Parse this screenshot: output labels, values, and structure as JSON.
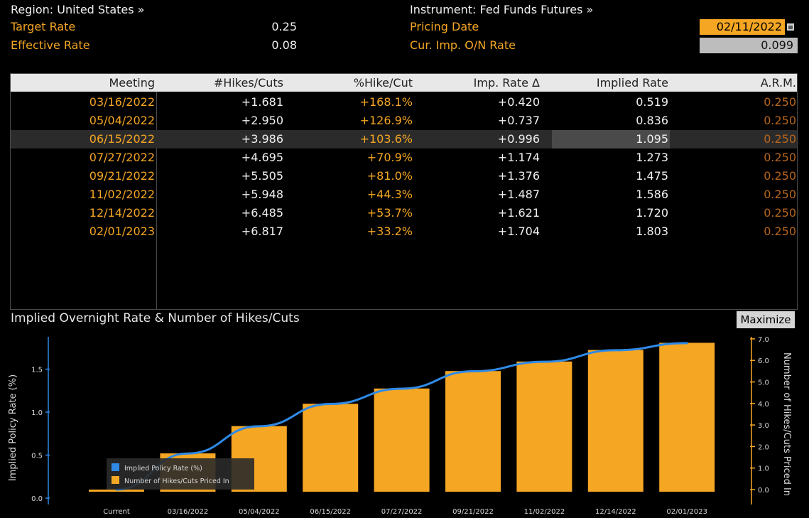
{
  "header": {
    "region_label": "Region: United States »",
    "instrument_label": "Instrument: Fed Funds Futures »",
    "target_rate_label": "Target Rate",
    "target_rate_value": "0.25",
    "effective_rate_label": "Effective Rate",
    "effective_rate_value": "0.08",
    "pricing_date_label": "Pricing Date",
    "pricing_date_value": "02/11/2022",
    "cur_imp_label": "Cur. Imp. O/N Rate",
    "cur_imp_value": "0.099"
  },
  "table": {
    "columns": [
      "Meeting",
      "#Hikes/Cuts",
      "%Hike/Cut",
      "Imp. Rate Δ",
      "Implied Rate",
      "A.R.M."
    ],
    "rows": [
      [
        "03/16/2022",
        "+1.681",
        "+168.1%",
        "+0.420",
        "0.519",
        "0.250"
      ],
      [
        "05/04/2022",
        "+2.950",
        "+126.9%",
        "+0.737",
        "0.836",
        "0.250"
      ],
      [
        "06/15/2022",
        "+3.986",
        "+103.6%",
        "+0.996",
        "1.095",
        "0.250"
      ],
      [
        "07/27/2022",
        "+4.695",
        "+70.9%",
        "+1.174",
        "1.273",
        "0.250"
      ],
      [
        "09/21/2022",
        "+5.505",
        "+81.0%",
        "+1.376",
        "1.475",
        "0.250"
      ],
      [
        "11/02/2022",
        "+5.948",
        "+44.3%",
        "+1.487",
        "1.586",
        "0.250"
      ],
      [
        "12/14/2022",
        "+6.485",
        "+53.7%",
        "+1.621",
        "1.720",
        "0.250"
      ],
      [
        "02/01/2023",
        "+6.817",
        "+33.2%",
        "+1.704",
        "1.803",
        "0.250"
      ]
    ]
  },
  "chart": {
    "title": "Implied Overnight Rate & Number of Hikes/Cuts",
    "maximize_label": "Maximize"
  },
  "chart_data": {
    "type": "bar",
    "title": "Implied Overnight Rate & Number of Hikes/Cuts",
    "categories": [
      "Current",
      "03/16/2022",
      "05/04/2022",
      "06/15/2022",
      "07/27/2022",
      "09/21/2022",
      "11/02/2022",
      "12/14/2022",
      "02/01/2023"
    ],
    "series": [
      {
        "name": "Implied Policy Rate (%)",
        "type": "line",
        "axis": "left",
        "color": "#2f8ae6",
        "values": [
          0.099,
          0.519,
          0.836,
          1.095,
          1.273,
          1.475,
          1.586,
          1.72,
          1.803
        ]
      },
      {
        "name": "Number of Hikes/Cuts Priced In",
        "type": "bar",
        "axis": "right",
        "color": "#f5a623",
        "values": [
          0,
          1.681,
          2.95,
          3.986,
          4.695,
          5.505,
          5.948,
          6.485,
          6.817
        ]
      }
    ],
    "ylabel": "Implied Policy Rate (%)",
    "y2label": "Number of Hikes/Cuts Priced In",
    "ylim": [
      0,
      1.9
    ],
    "y2lim": [
      -0.3,
      7.2
    ],
    "yticks": [
      "0.0",
      "0.5",
      "1.0",
      "1.5"
    ],
    "y2ticks": [
      "0.0",
      "1.0",
      "2.0",
      "3.0",
      "4.0",
      "5.0",
      "6.0",
      "7.0"
    ],
    "legend": "bottom-left"
  }
}
